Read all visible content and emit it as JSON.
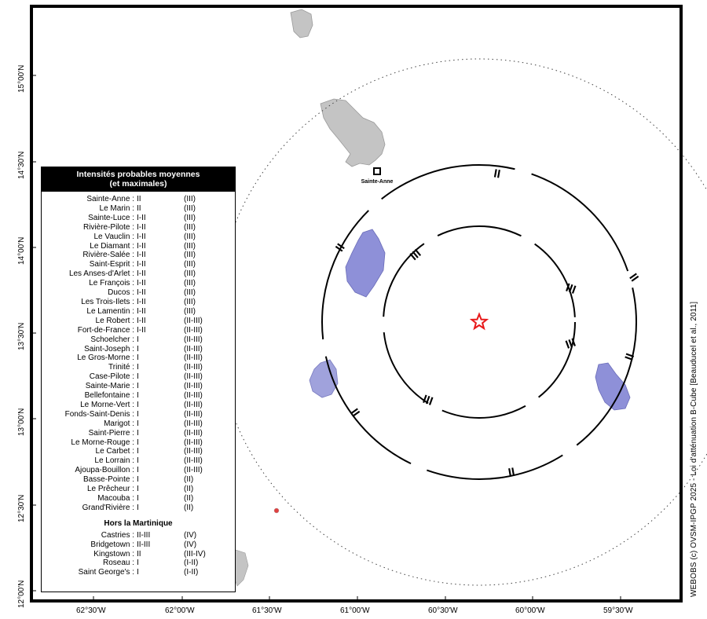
{
  "map": {
    "y_axis_labels": [
      "15°00'N",
      "14°30'N",
      "14°00'N",
      "13°30'N",
      "13°00'N",
      "12°30'N",
      "12°00'N"
    ],
    "x_axis_labels": [
      "62°30'W",
      "62°00'W",
      "61°30'W",
      "61°00'W",
      "60°30'W",
      "60°00'W",
      "59°30'W"
    ],
    "epicenter_marker": "star-icon",
    "town_label": "Sainte-Anne",
    "ring_labels": {
      "inner": "III",
      "outer": "II"
    },
    "colors": {
      "ring": "#000000",
      "star": "#e8191a",
      "land_felt": "#8e90d8",
      "land_other": "#c8c8c8"
    }
  },
  "legend": {
    "title_line1": "Intensités probables moyennes",
    "title_line2": "(et maximales)",
    "rows": [
      {
        "name": "Sainte-Anne :",
        "main": "II",
        "max": "(III)"
      },
      {
        "name": "Le Marin :",
        "main": "II",
        "max": "(III)"
      },
      {
        "name": "Sainte-Luce :",
        "main": "I-II",
        "max": "(III)"
      },
      {
        "name": "Rivière-Pilote :",
        "main": "I-II",
        "max": "(III)"
      },
      {
        "name": "Le Vauclin :",
        "main": "I-II",
        "max": "(III)"
      },
      {
        "name": "Le Diamant :",
        "main": "I-II",
        "max": "(III)"
      },
      {
        "name": "Rivière-Salée :",
        "main": "I-II",
        "max": "(III)"
      },
      {
        "name": "Saint-Esprit :",
        "main": "I-II",
        "max": "(III)"
      },
      {
        "name": "Les Anses-d'Arlet :",
        "main": "I-II",
        "max": "(III)"
      },
      {
        "name": "Le François :",
        "main": "I-II",
        "max": "(III)"
      },
      {
        "name": "Ducos :",
        "main": "I-II",
        "max": "(III)"
      },
      {
        "name": "Les Trois-Ilets :",
        "main": "I-II",
        "max": "(III)"
      },
      {
        "name": "Le Lamentin :",
        "main": "I-II",
        "max": "(III)"
      },
      {
        "name": "Le Robert :",
        "main": "I-II",
        "max": "(II-III)"
      },
      {
        "name": "Fort-de-France :",
        "main": "I-II",
        "max": "(II-III)"
      },
      {
        "name": "Schoelcher :",
        "main": "I",
        "max": "(II-III)"
      },
      {
        "name": "Saint-Joseph :",
        "main": "I",
        "max": "(II-III)"
      },
      {
        "name": "Le Gros-Morne :",
        "main": "I",
        "max": "(II-III)"
      },
      {
        "name": "Trinité :",
        "main": "I",
        "max": "(II-III)"
      },
      {
        "name": "Case-Pilote :",
        "main": "I",
        "max": "(II-III)"
      },
      {
        "name": "Sainte-Marie :",
        "main": "I",
        "max": "(II-III)"
      },
      {
        "name": "Bellefontaine :",
        "main": "I",
        "max": "(II-III)"
      },
      {
        "name": "Le Morne-Vert :",
        "main": "I",
        "max": "(II-III)"
      },
      {
        "name": "Fonds-Saint-Denis :",
        "main": "I",
        "max": "(II-III)"
      },
      {
        "name": "Marigot :",
        "main": "I",
        "max": "(II-III)"
      },
      {
        "name": "Saint-Pierre :",
        "main": "I",
        "max": "(II-III)"
      },
      {
        "name": "Le Morne-Rouge :",
        "main": "I",
        "max": "(II-III)"
      },
      {
        "name": "Le Carbet :",
        "main": "I",
        "max": "(II-III)"
      },
      {
        "name": "Le Lorrain :",
        "main": "I",
        "max": "(II-III)"
      },
      {
        "name": "Ajoupa-Bouillon :",
        "main": "I",
        "max": "(II-III)"
      },
      {
        "name": "Basse-Pointe :",
        "main": "I",
        "max": "(II)"
      },
      {
        "name": "Le Prêcheur :",
        "main": "I",
        "max": "(II)"
      },
      {
        "name": "Macouba :",
        "main": "I",
        "max": "(II)"
      },
      {
        "name": "Grand'Rivière :",
        "main": "I",
        "max": "(II)"
      }
    ],
    "outside_title": "Hors la Martinique",
    "outside_rows": [
      {
        "name": "Castries :",
        "main": "II-III",
        "max": "(IV)"
      },
      {
        "name": "Bridgetown :",
        "main": "II-III",
        "max": "(IV)"
      },
      {
        "name": "Kingstown :",
        "main": "II",
        "max": "(III-IV)"
      },
      {
        "name": "Roseau :",
        "main": "I",
        "max": "(I-II)"
      },
      {
        "name": "Saint George's :",
        "main": "I",
        "max": "(I-II)"
      }
    ]
  },
  "credit": "WEBOBS (c) OVSM-IPGP 2025 - Loi d'atténuation B-Cube [Beauducel et al., 2011]"
}
